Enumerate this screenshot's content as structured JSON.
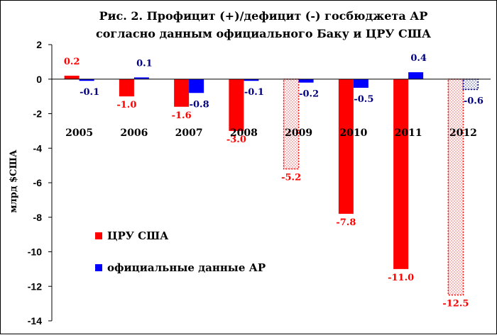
{
  "chart_data": {
    "type": "bar",
    "title_lines": [
      "Рис. 2. Профицит (+)/дефицит (-) госбюджета АР",
      "согласно данным официального Баку и ЦРУ США"
    ],
    "ylabel": "млрд $США",
    "ylim": [
      -14,
      2
    ],
    "yticks": [
      "2",
      "0",
      "-2",
      "-4",
      "-6",
      "-8",
      "-10",
      "-12",
      "-14"
    ],
    "categories": [
      "2005",
      "2006",
      "2007",
      "2008",
      "2009",
      "2010",
      "2011",
      "2012"
    ],
    "legend_position": "left-bottom",
    "series": [
      {
        "name": "ЦРУ США",
        "color": "#ff0000",
        "values": [
          0.2,
          -1.0,
          -1.6,
          -3.0,
          -5.2,
          -7.8,
          -11.0,
          -12.5
        ],
        "labels": [
          "0.2",
          "-1.0",
          "-1.6",
          "-3.0",
          "-5.2",
          "-7.8",
          "-11.0",
          "-12.5"
        ],
        "estimated": [
          false,
          false,
          false,
          false,
          true,
          false,
          false,
          true
        ]
      },
      {
        "name": "официальные данные АР",
        "color": "#0000ff",
        "values": [
          -0.1,
          0.1,
          -0.8,
          -0.1,
          -0.2,
          -0.5,
          0.4,
          -0.6
        ],
        "labels": [
          "-0.1",
          "0.1",
          "-0.8",
          "-0.1",
          "-0.2",
          "-0.5",
          "0.4",
          "-0.6"
        ],
        "estimated": [
          false,
          false,
          false,
          false,
          false,
          false,
          false,
          true
        ]
      }
    ]
  }
}
